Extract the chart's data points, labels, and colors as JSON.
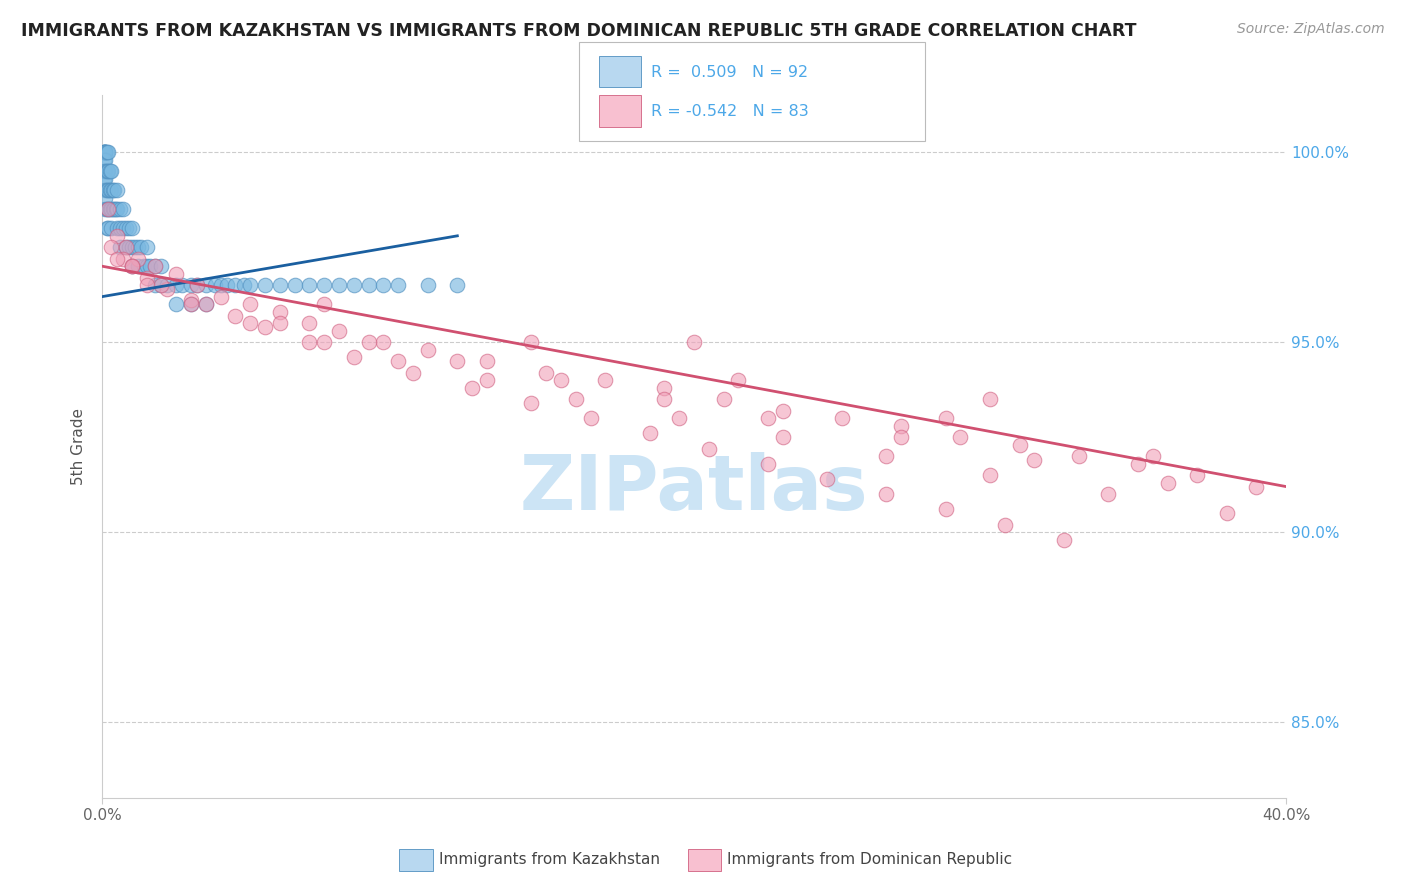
{
  "title": "IMMIGRANTS FROM KAZAKHSTAN VS IMMIGRANTS FROM DOMINICAN REPUBLIC 5TH GRADE CORRELATION CHART",
  "source": "Source: ZipAtlas.com",
  "ylabel": "5th Grade",
  "ylim": [
    83.0,
    101.5
  ],
  "xlim": [
    0.0,
    40.0
  ],
  "yticks": [
    85.0,
    90.0,
    95.0,
    100.0
  ],
  "ytick_labels": [
    "85.0%",
    "90.0%",
    "95.0%",
    "100.0%"
  ],
  "kazakhstan_R": 0.509,
  "kazakhstan_N": 92,
  "dominican_R": -0.542,
  "dominican_N": 83,
  "blue_color": "#7ab8e0",
  "blue_edge": "#5090c0",
  "pink_color": "#f0a0b8",
  "pink_edge": "#d06080",
  "blue_line_color": "#1a5fa0",
  "pink_line_color": "#d05070",
  "legend_blue_fill": "#b8d8f0",
  "legend_pink_fill": "#f8c0d0",
  "background_color": "#ffffff",
  "title_color": "#222222",
  "source_color": "#999999",
  "ylabel_color": "#555555",
  "right_axis_color": "#4da8e8",
  "grid_color": "#cccccc",
  "watermark_color": "#cce4f5",
  "kazakhstan_x": [
    0.05,
    0.05,
    0.05,
    0.05,
    0.05,
    0.05,
    0.1,
    0.1,
    0.1,
    0.1,
    0.1,
    0.1,
    0.1,
    0.1,
    0.1,
    0.1,
    0.15,
    0.15,
    0.15,
    0.15,
    0.15,
    0.2,
    0.2,
    0.2,
    0.2,
    0.2,
    0.25,
    0.25,
    0.25,
    0.3,
    0.3,
    0.3,
    0.3,
    0.35,
    0.35,
    0.4,
    0.4,
    0.45,
    0.5,
    0.5,
    0.5,
    0.6,
    0.6,
    0.6,
    0.7,
    0.7,
    0.8,
    0.8,
    0.9,
    0.9,
    1.0,
    1.0,
    1.0,
    1.1,
    1.2,
    1.2,
    1.3,
    1.4,
    1.5,
    1.5,
    1.6,
    1.8,
    1.8,
    2.0,
    2.0,
    2.2,
    2.5,
    2.5,
    2.7,
    3.0,
    3.0,
    3.2,
    3.5,
    3.5,
    3.8,
    4.0,
    4.2,
    4.5,
    4.8,
    5.0,
    5.5,
    6.0,
    6.5,
    7.0,
    7.5,
    8.0,
    8.5,
    9.0,
    9.5,
    10.0,
    11.0,
    12.0
  ],
  "kazakhstan_y": [
    100.0,
    100.0,
    100.0,
    99.8,
    99.5,
    99.3,
    100.0,
    100.0,
    100.0,
    100.0,
    99.8,
    99.5,
    99.3,
    99.0,
    98.8,
    98.5,
    100.0,
    99.5,
    99.0,
    98.5,
    98.0,
    100.0,
    99.5,
    99.0,
    98.5,
    98.0,
    99.5,
    99.0,
    98.5,
    99.5,
    99.0,
    98.5,
    98.0,
    99.0,
    98.5,
    99.0,
    98.5,
    98.5,
    99.0,
    98.5,
    98.0,
    98.5,
    98.0,
    97.5,
    98.5,
    98.0,
    98.0,
    97.5,
    98.0,
    97.5,
    98.0,
    97.5,
    97.0,
    97.5,
    97.5,
    97.0,
    97.5,
    97.0,
    97.5,
    97.0,
    97.0,
    97.0,
    96.5,
    97.0,
    96.5,
    96.5,
    96.5,
    96.0,
    96.5,
    96.5,
    96.0,
    96.5,
    96.5,
    96.0,
    96.5,
    96.5,
    96.5,
    96.5,
    96.5,
    96.5,
    96.5,
    96.5,
    96.5,
    96.5,
    96.5,
    96.5,
    96.5,
    96.5,
    96.5,
    96.5,
    96.5,
    96.5
  ],
  "dominican_x": [
    0.2,
    0.5,
    0.8,
    1.2,
    1.8,
    2.5,
    3.2,
    4.0,
    5.0,
    6.0,
    7.0,
    8.0,
    9.5,
    11.0,
    13.0,
    15.0,
    17.0,
    19.0,
    21.0,
    23.0,
    25.0,
    27.0,
    29.0,
    31.0,
    33.0,
    35.0,
    37.0,
    39.0,
    0.3,
    0.7,
    1.0,
    1.5,
    2.2,
    3.0,
    4.5,
    5.5,
    7.0,
    8.5,
    10.5,
    12.5,
    14.5,
    16.5,
    18.5,
    20.5,
    22.5,
    24.5,
    26.5,
    28.5,
    30.5,
    32.5,
    0.5,
    1.0,
    2.0,
    3.5,
    5.0,
    7.5,
    10.0,
    13.0,
    16.0,
    19.5,
    23.0,
    26.5,
    30.0,
    34.0,
    38.0,
    1.5,
    3.0,
    6.0,
    9.0,
    12.0,
    15.5,
    19.0,
    22.5,
    27.0,
    31.5,
    36.0,
    7.5,
    14.5,
    21.5,
    28.5,
    35.5,
    20.0,
    30.0
  ],
  "dominican_y": [
    98.5,
    97.8,
    97.5,
    97.2,
    97.0,
    96.8,
    96.5,
    96.2,
    96.0,
    95.8,
    95.5,
    95.3,
    95.0,
    94.8,
    94.5,
    94.2,
    94.0,
    93.8,
    93.5,
    93.2,
    93.0,
    92.8,
    92.5,
    92.3,
    92.0,
    91.8,
    91.5,
    91.2,
    97.5,
    97.2,
    97.0,
    96.7,
    96.4,
    96.1,
    95.7,
    95.4,
    95.0,
    94.6,
    94.2,
    93.8,
    93.4,
    93.0,
    92.6,
    92.2,
    91.8,
    91.4,
    91.0,
    90.6,
    90.2,
    89.8,
    97.2,
    97.0,
    96.5,
    96.0,
    95.5,
    95.0,
    94.5,
    94.0,
    93.5,
    93.0,
    92.5,
    92.0,
    91.5,
    91.0,
    90.5,
    96.5,
    96.0,
    95.5,
    95.0,
    94.5,
    94.0,
    93.5,
    93.0,
    92.5,
    91.9,
    91.3,
    96.0,
    95.0,
    94.0,
    93.0,
    92.0,
    95.0,
    93.5
  ],
  "kaz_trend_x0": 0.0,
  "kaz_trend_x1": 12.0,
  "kaz_trend_y0": 96.2,
  "kaz_trend_y1": 97.8,
  "dom_trend_x0": 0.0,
  "dom_trend_x1": 40.0,
  "dom_trend_y0": 97.0,
  "dom_trend_y1": 91.2
}
